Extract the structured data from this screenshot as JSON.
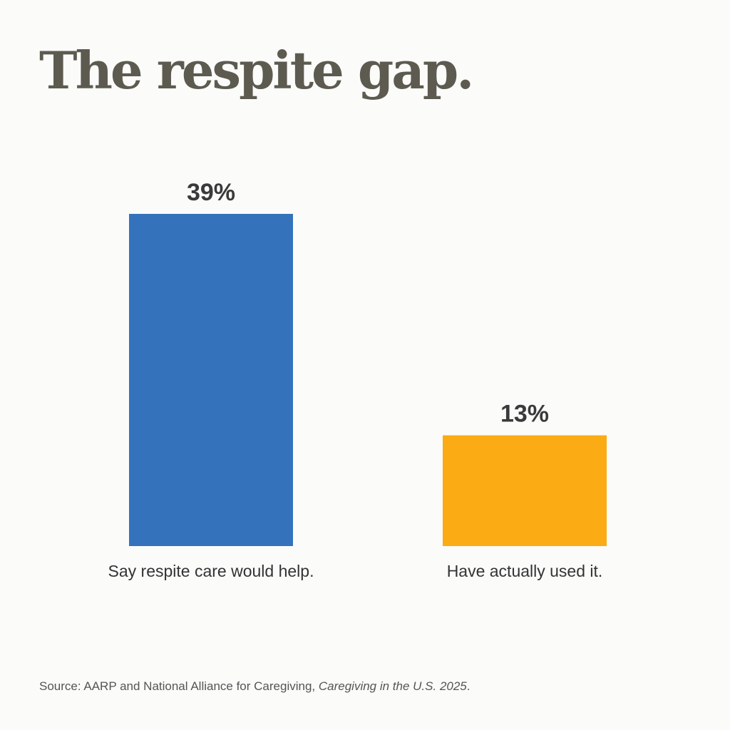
{
  "chart_data": {
    "type": "bar",
    "title": "The respite gap.",
    "categories": [
      "Say respite care would help.",
      "Have actually used it."
    ],
    "values": [
      39,
      13
    ],
    "value_labels": [
      "39%",
      "13%"
    ],
    "colors": [
      "#3473bb",
      "#fbab13"
    ],
    "ylim": [
      0,
      39
    ],
    "xlabel": "",
    "ylabel": "",
    "grid": false
  },
  "source": {
    "prefix": "Source: AARP and National Alliance for Caregiving, ",
    "publication": "Caregiving in the U.S. 2025",
    "suffix": "."
  }
}
